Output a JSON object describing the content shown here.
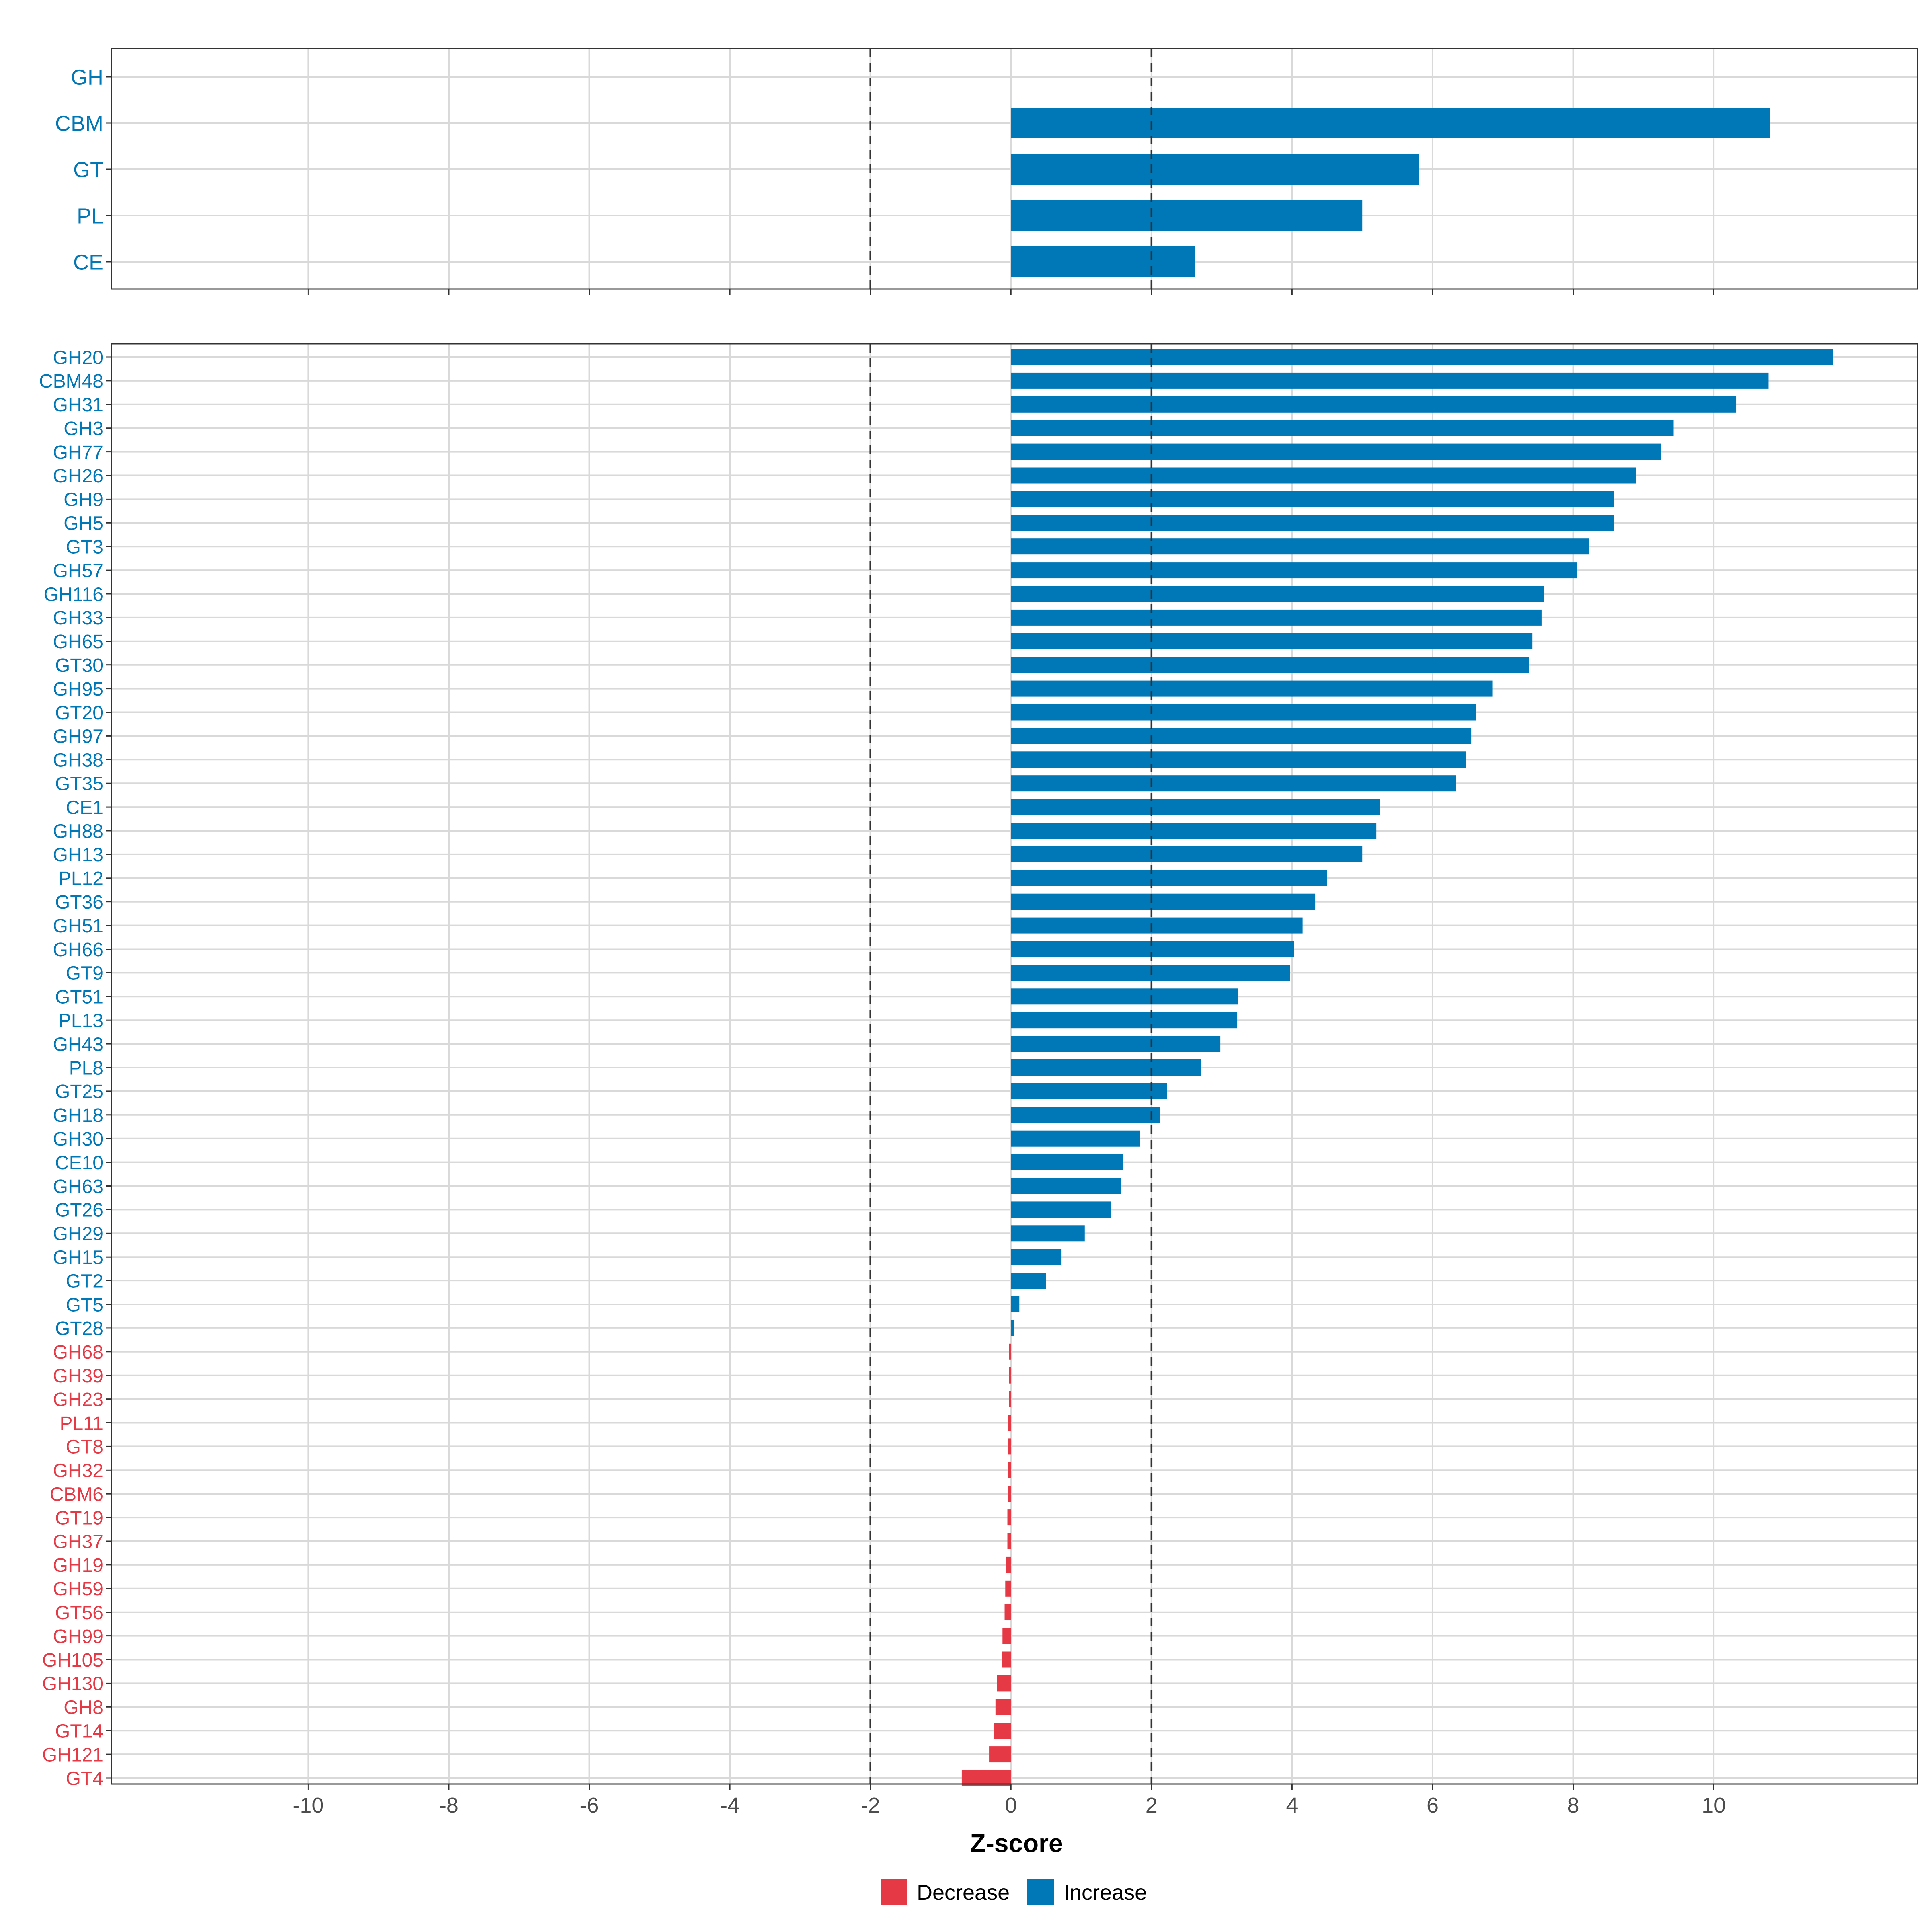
{
  "colors": {
    "increase": "#0077b6",
    "decrease": "#e63946",
    "grid": "#d9d9d9",
    "axis_text": "#4d4d4d",
    "refline": "#333333",
    "frame": "#333333"
  },
  "chart_data": [
    {
      "type": "bar",
      "orientation": "horizontal",
      "panel": "top",
      "categories": [
        "GH",
        "CBM",
        "GT",
        "PL",
        "CE"
      ],
      "values": [
        0,
        10.8,
        5.8,
        5.0,
        2.62
      ],
      "direction": [
        "Increase",
        "Increase",
        "Increase",
        "Increase",
        "Increase"
      ],
      "xlim": [
        -12.8,
        12.9
      ],
      "reference_lines": [
        -2,
        2
      ],
      "grid": true
    },
    {
      "type": "bar",
      "orientation": "horizontal",
      "panel": "bottom",
      "categories": [
        "GH20",
        "CBM48",
        "GH31",
        "GH3",
        "GH77",
        "GH26",
        "GH9",
        "GH5",
        "GT3",
        "GH57",
        "GH116",
        "GH33",
        "GH65",
        "GT30",
        "GH95",
        "GT20",
        "GH97",
        "GH38",
        "GT35",
        "CE1",
        "GH88",
        "GH13",
        "PL12",
        "GT36",
        "GH51",
        "GH66",
        "GT9",
        "GT51",
        "PL13",
        "GH43",
        "PL8",
        "GT25",
        "GH18",
        "GH30",
        "CE10",
        "GH63",
        "GT26",
        "GH29",
        "GH15",
        "GT2",
        "GT5",
        "GT28",
        "GH68",
        "GH39",
        "GH23",
        "PL11",
        "GT8",
        "GH32",
        "CBM6",
        "GT19",
        "GH37",
        "GH19",
        "GH59",
        "GT56",
        "GH99",
        "GH105",
        "GH130",
        "GH8",
        "GT14",
        "GH121",
        "GT4"
      ],
      "values": [
        11.7,
        10.78,
        10.32,
        9.43,
        9.25,
        8.9,
        8.58,
        8.58,
        8.23,
        8.05,
        7.58,
        7.55,
        7.42,
        7.37,
        6.85,
        6.62,
        6.55,
        6.48,
        6.33,
        5.25,
        5.2,
        5.0,
        4.5,
        4.33,
        4.15,
        4.03,
        3.97,
        3.23,
        3.22,
        2.98,
        2.7,
        2.22,
        2.12,
        1.83,
        1.6,
        1.57,
        1.42,
        1.05,
        0.72,
        0.5,
        0.12,
        0.05,
        -0.03,
        -0.03,
        -0.03,
        -0.04,
        -0.04,
        -0.04,
        -0.04,
        -0.05,
        -0.05,
        -0.07,
        -0.08,
        -0.09,
        -0.12,
        -0.13,
        -0.2,
        -0.22,
        -0.24,
        -0.31,
        -0.7
      ],
      "direction": [
        "Increase",
        "Increase",
        "Increase",
        "Increase",
        "Increase",
        "Increase",
        "Increase",
        "Increase",
        "Increase",
        "Increase",
        "Increase",
        "Increase",
        "Increase",
        "Increase",
        "Increase",
        "Increase",
        "Increase",
        "Increase",
        "Increase",
        "Increase",
        "Increase",
        "Increase",
        "Increase",
        "Increase",
        "Increase",
        "Increase",
        "Increase",
        "Increase",
        "Increase",
        "Increase",
        "Increase",
        "Increase",
        "Increase",
        "Increase",
        "Increase",
        "Increase",
        "Increase",
        "Increase",
        "Increase",
        "Increase",
        "Increase",
        "Increase",
        "Decrease",
        "Decrease",
        "Decrease",
        "Decrease",
        "Decrease",
        "Decrease",
        "Decrease",
        "Decrease",
        "Decrease",
        "Decrease",
        "Decrease",
        "Decrease",
        "Decrease",
        "Decrease",
        "Decrease",
        "Decrease",
        "Decrease",
        "Decrease",
        "Decrease"
      ],
      "xlim": [
        -12.8,
        12.9
      ],
      "x_ticks": [
        -10,
        -8,
        -6,
        -4,
        -2,
        0,
        2,
        4,
        6,
        8,
        10
      ],
      "xlabel": "Z-score",
      "reference_lines": [
        -2,
        2
      ],
      "grid": true
    }
  ],
  "legend": {
    "position": "bottom",
    "items": [
      {
        "label": "Decrease",
        "color": "#e63946"
      },
      {
        "label": "Increase",
        "color": "#0077b6"
      }
    ]
  }
}
